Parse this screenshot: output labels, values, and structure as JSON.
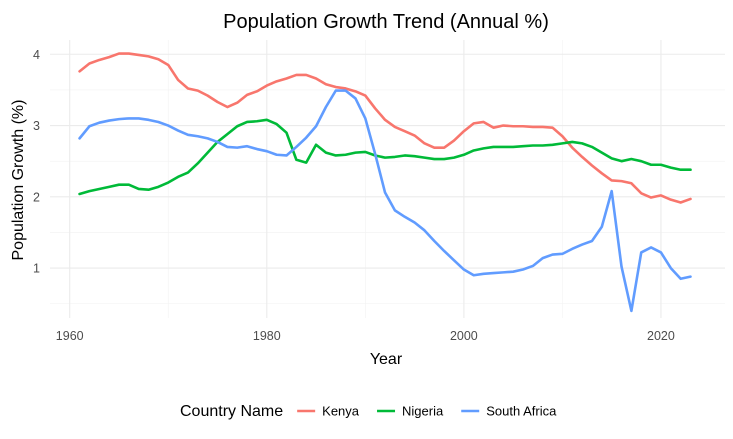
{
  "chart_data": {
    "type": "line",
    "title": "Population Growth Trend (Annual %)",
    "xlabel": "Year",
    "ylabel": "Population Growth (%)",
    "xlim": [
      1958,
      2026.5
    ],
    "ylim": [
      0.3,
      4.2
    ],
    "x_ticks": [
      1960,
      1980,
      2000,
      2020
    ],
    "y_ticks": [
      1,
      2,
      3,
      4
    ],
    "grid": true,
    "legend": {
      "title": "Country Name",
      "position": "bottom"
    },
    "x": [
      1961,
      1962,
      1963,
      1964,
      1965,
      1966,
      1967,
      1968,
      1969,
      1970,
      1971,
      1972,
      1973,
      1974,
      1975,
      1976,
      1977,
      1978,
      1979,
      1980,
      1981,
      1982,
      1983,
      1984,
      1985,
      1986,
      1987,
      1988,
      1989,
      1990,
      1991,
      1992,
      1993,
      1994,
      1995,
      1996,
      1997,
      1998,
      1999,
      2000,
      2001,
      2002,
      2003,
      2004,
      2005,
      2006,
      2007,
      2008,
      2009,
      2010,
      2011,
      2012,
      2013,
      2014,
      2015,
      2016,
      2017,
      2018,
      2019,
      2020,
      2021,
      2022,
      2023
    ],
    "series": [
      {
        "name": "Kenya",
        "color": "#F8766D",
        "values": [
          3.76,
          3.87,
          3.92,
          3.96,
          4.01,
          4.01,
          3.99,
          3.97,
          3.93,
          3.85,
          3.64,
          3.52,
          3.49,
          3.42,
          3.33,
          3.26,
          3.32,
          3.43,
          3.48,
          3.56,
          3.62,
          3.66,
          3.71,
          3.71,
          3.66,
          3.58,
          3.54,
          3.52,
          3.48,
          3.42,
          3.24,
          3.08,
          2.98,
          2.92,
          2.86,
          2.75,
          2.69,
          2.69,
          2.79,
          2.92,
          3.03,
          3.05,
          2.97,
          3.0,
          2.99,
          2.99,
          2.98,
          2.98,
          2.97,
          2.85,
          2.69,
          2.56,
          2.44,
          2.33,
          2.23,
          2.22,
          2.19,
          2.05,
          1.99,
          2.02,
          1.96,
          1.92,
          1.97
        ]
      },
      {
        "name": "Nigeria",
        "color": "#00BA38",
        "values": [
          2.04,
          2.08,
          2.11,
          2.14,
          2.17,
          2.17,
          2.11,
          2.1,
          2.14,
          2.2,
          2.28,
          2.34,
          2.47,
          2.62,
          2.77,
          2.88,
          2.99,
          3.05,
          3.06,
          3.08,
          3.02,
          2.9,
          2.52,
          2.48,
          2.73,
          2.62,
          2.58,
          2.59,
          2.62,
          2.63,
          2.58,
          2.55,
          2.56,
          2.58,
          2.57,
          2.55,
          2.53,
          2.53,
          2.55,
          2.59,
          2.65,
          2.68,
          2.7,
          2.7,
          2.7,
          2.71,
          2.72,
          2.72,
          2.73,
          2.75,
          2.77,
          2.75,
          2.7,
          2.62,
          2.54,
          2.5,
          2.53,
          2.5,
          2.45,
          2.45,
          2.41,
          2.38,
          2.38
        ]
      },
      {
        "name": "South Africa",
        "color": "#619CFF",
        "values": [
          2.82,
          2.99,
          3.04,
          3.07,
          3.09,
          3.1,
          3.1,
          3.08,
          3.05,
          3.0,
          2.93,
          2.87,
          2.85,
          2.82,
          2.77,
          2.7,
          2.69,
          2.71,
          2.67,
          2.64,
          2.59,
          2.58,
          2.7,
          2.83,
          2.99,
          3.26,
          3.49,
          3.49,
          3.38,
          3.1,
          2.6,
          2.06,
          1.81,
          1.72,
          1.64,
          1.53,
          1.38,
          1.24,
          1.11,
          0.98,
          0.9,
          0.92,
          0.93,
          0.94,
          0.95,
          0.98,
          1.03,
          1.14,
          1.19,
          1.2,
          1.27,
          1.33,
          1.38,
          1.58,
          2.08,
          1.02,
          0.4,
          1.22,
          1.29,
          1.22,
          1.0,
          0.85,
          0.88
        ]
      }
    ]
  }
}
